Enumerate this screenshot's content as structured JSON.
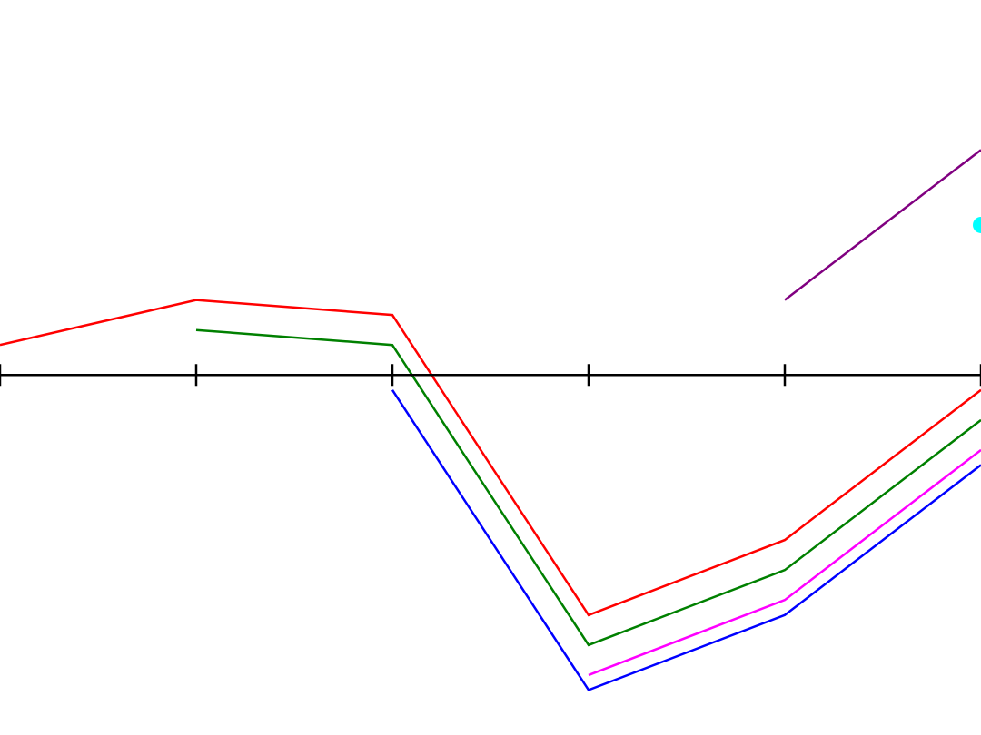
{
  "chart_data": {
    "type": "line",
    "title": "",
    "xlabel": "",
    "ylabel": "",
    "grid": false,
    "legend": "none",
    "x": [
      0,
      1,
      2,
      3,
      4,
      5
    ],
    "xlim": [
      0,
      5
    ],
    "ylim": [
      -12,
      12.5
    ],
    "axis_y": 0,
    "series": [
      {
        "color": "#ff0000",
        "values": [
          1.0,
          2.5,
          2.0,
          -8.0,
          -5.5,
          -0.5
        ]
      },
      {
        "color": "#008000",
        "values": [
          null,
          1.5,
          1.0,
          -9.0,
          -6.5,
          -1.5
        ]
      },
      {
        "color": "#ff00ff",
        "values": [
          null,
          null,
          null,
          -10.0,
          -7.5,
          -2.5
        ]
      },
      {
        "color": "#0000ff",
        "values": [
          null,
          null,
          -0.5,
          -10.5,
          -8.0,
          -3.0
        ]
      },
      {
        "color": "#800080",
        "values": [
          null,
          null,
          null,
          null,
          2.5,
          7.5
        ]
      }
    ],
    "points": [
      {
        "color": "#00ffff",
        "x": 5,
        "y": 5.0
      }
    ]
  }
}
